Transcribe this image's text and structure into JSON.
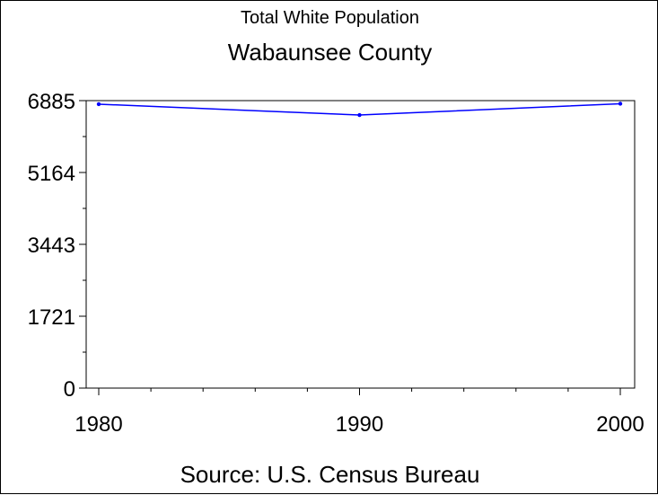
{
  "chart_data": {
    "type": "line",
    "title": "Total White Population",
    "subtitle": "Wabaunsee County",
    "source": "Source: U.S. Census Bureau",
    "x": [
      1980,
      1990,
      2000
    ],
    "x_tick_labels": [
      "1980",
      "1990",
      "2000"
    ],
    "series": [
      {
        "values": [
          6800,
          6540,
          6810
        ],
        "color": "#0000ff"
      }
    ],
    "y_tick_values": [
      0,
      1721,
      3443,
      5164,
      6885
    ],
    "y_tick_labels": [
      "0",
      "1721",
      "3443",
      "5164",
      "6885"
    ],
    "ylim": [
      0,
      6885
    ],
    "xlim": [
      1980,
      2000
    ],
    "grid": false
  }
}
